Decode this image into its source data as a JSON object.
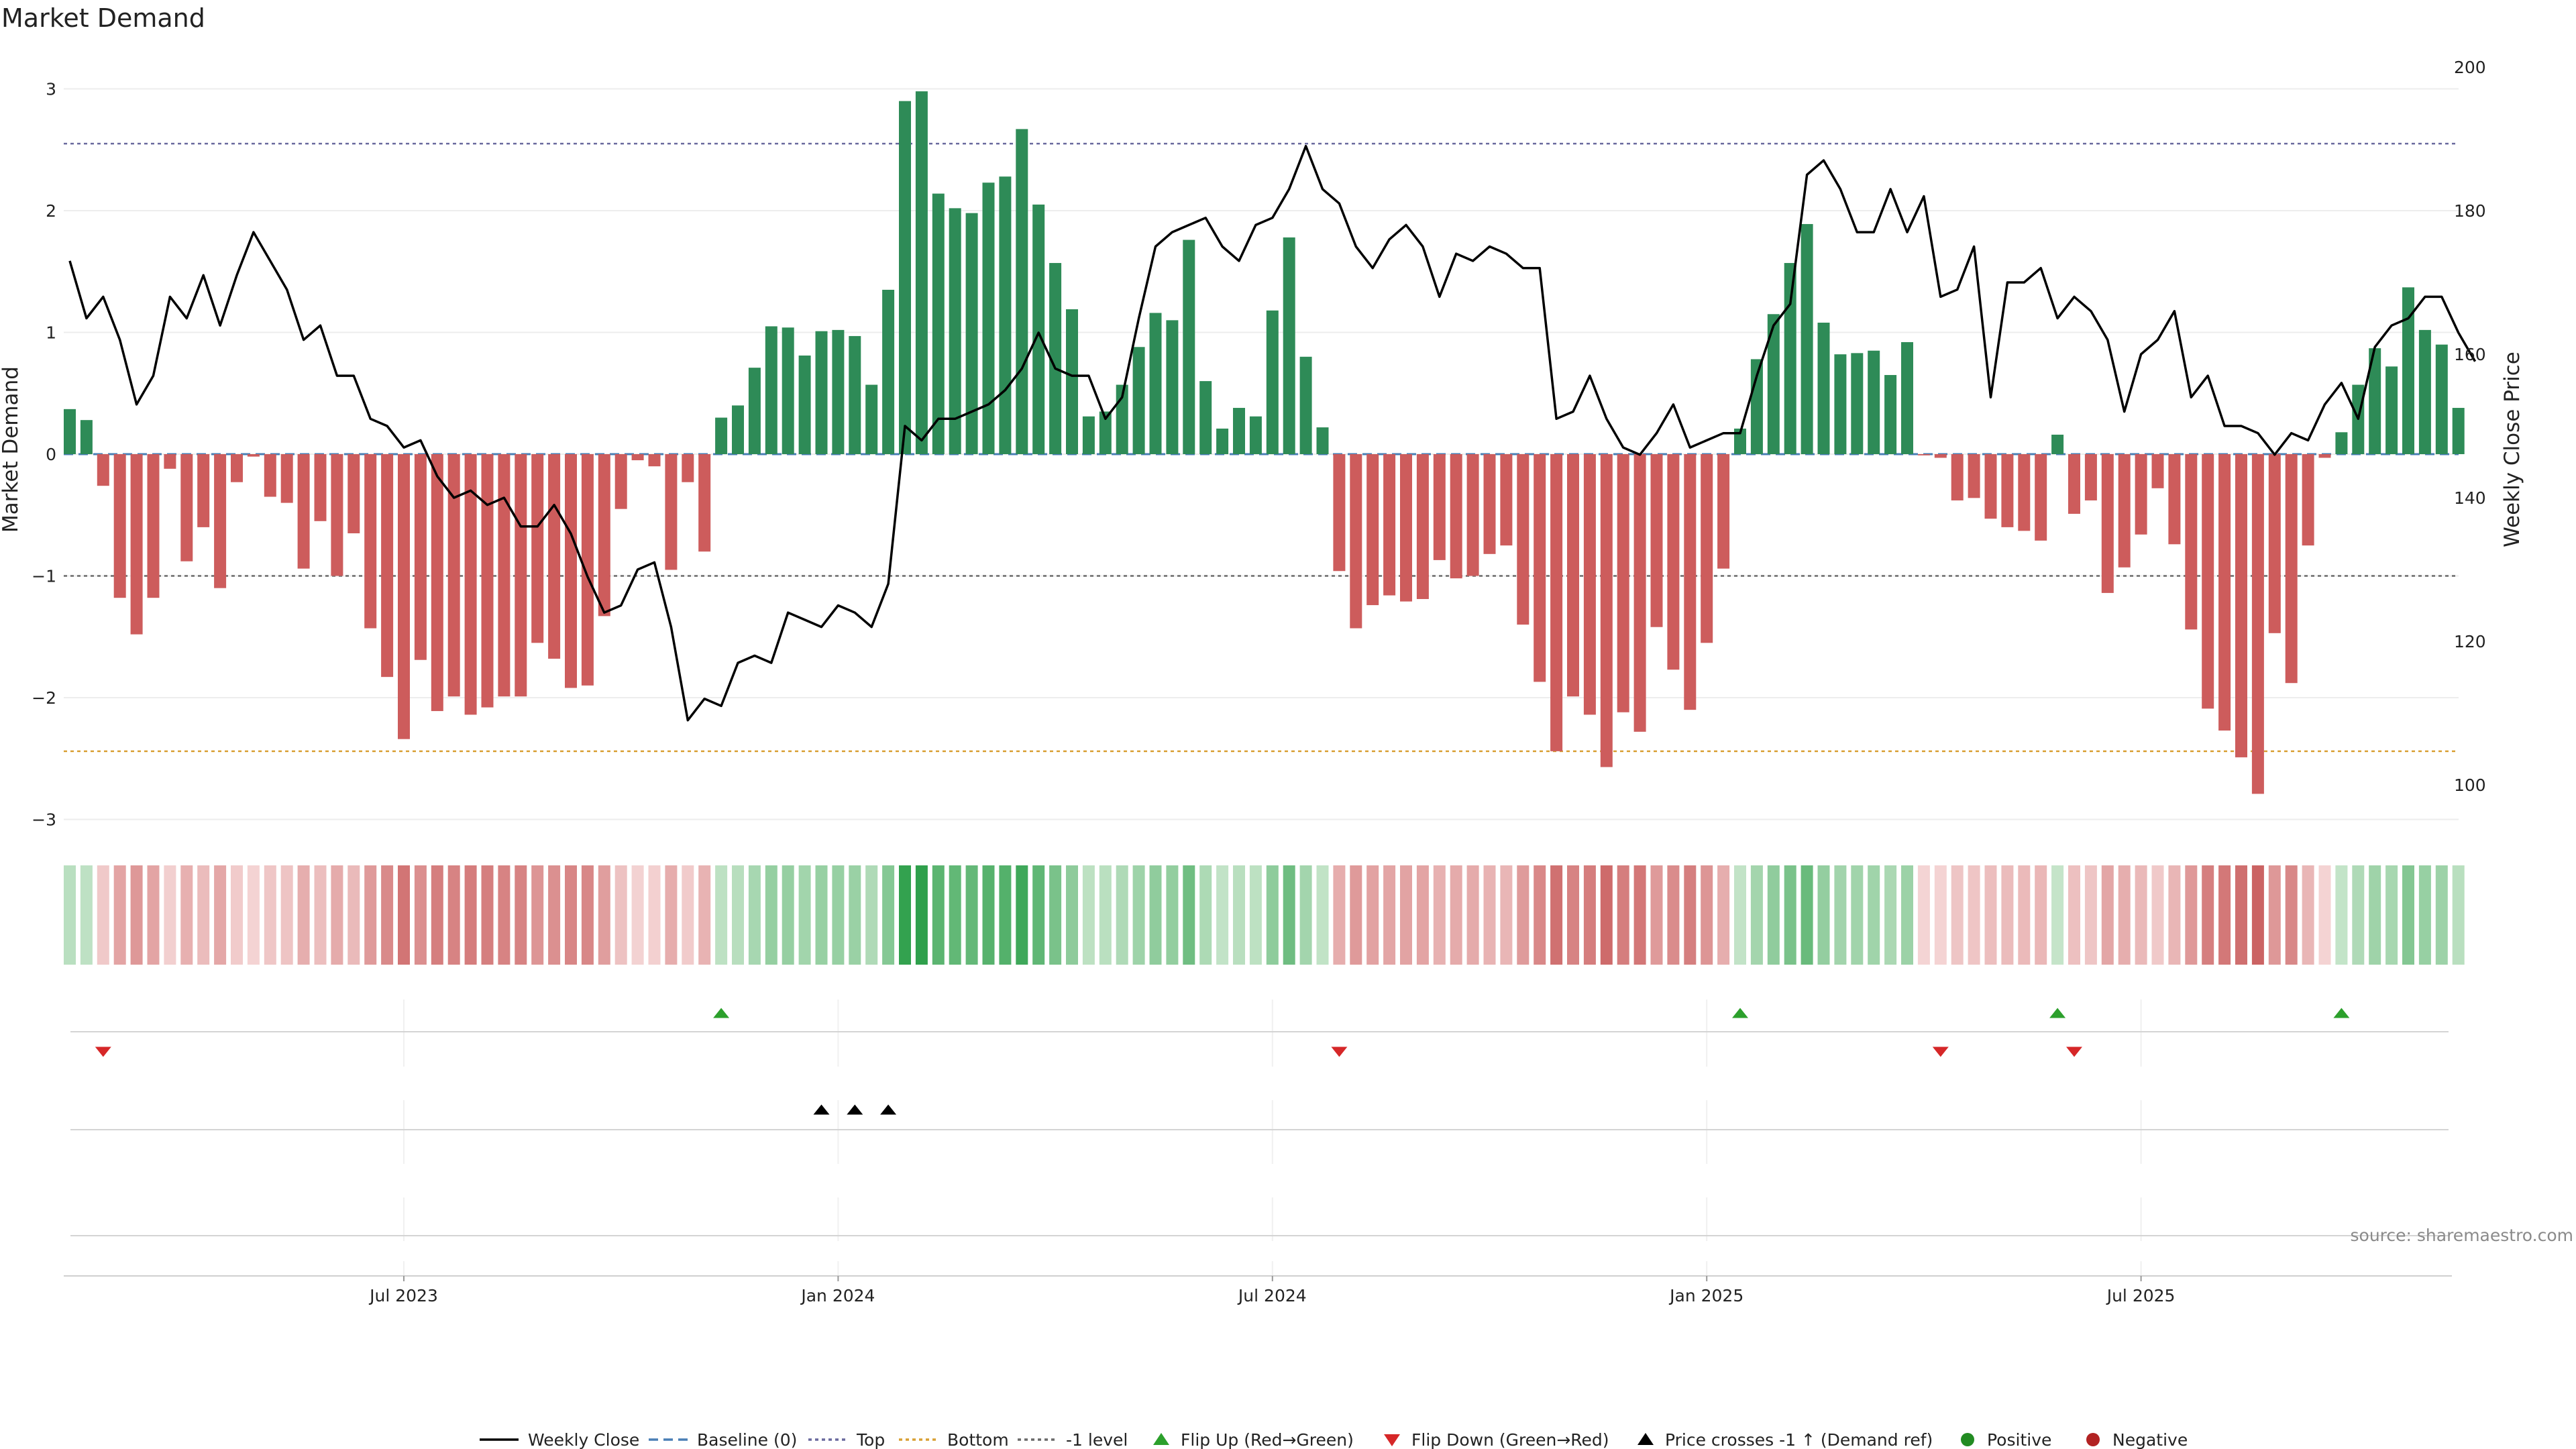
{
  "chart_data": {
    "type": "bar",
    "title": "Market Demand",
    "ylabel": "Market Demand",
    "y2label": "Weekly Close Price",
    "ylim": [
      -3,
      3
    ],
    "y2lim": [
      100,
      200
    ],
    "yticks": [
      3,
      2,
      1,
      0,
      -1,
      -2,
      -3
    ],
    "ytick_labels": [
      "3",
      "2",
      "1",
      "0",
      "−1",
      "−2",
      "−3"
    ],
    "y2ticks": [
      200,
      180,
      160,
      140,
      120,
      100
    ],
    "x_tick_labels": [
      {
        "label": "Jul 2023",
        "week": 20
      },
      {
        "label": "Jan 2024",
        "week": 46
      },
      {
        "label": "Jul 2024",
        "week": 72
      },
      {
        "label": "Jan 2025",
        "week": 98
      },
      {
        "label": "Jul 2025",
        "week": 124
      }
    ],
    "reference_lines": {
      "top": 2.55,
      "bottom": -2.44,
      "minus_one": -1.0,
      "baseline": 0
    },
    "demand": [
      0.37,
      0.28,
      -0.26,
      -1.18,
      -1.48,
      -1.18,
      -0.12,
      -0.88,
      -0.6,
      -1.1,
      -0.23,
      -0.02,
      -0.35,
      -0.4,
      -0.94,
      -0.55,
      -1.0,
      -0.65,
      -1.43,
      -1.83,
      -2.34,
      -1.69,
      -2.11,
      -1.99,
      -2.14,
      -2.08,
      -1.99,
      -1.99,
      -1.55,
      -1.68,
      -1.92,
      -1.9,
      -1.33,
      -0.45,
      -0.05,
      -0.1,
      -0.95,
      -0.23,
      -0.8,
      0.3,
      0.4,
      0.71,
      1.05,
      1.04,
      0.81,
      1.01,
      1.02,
      0.97,
      0.57,
      1.35,
      2.9,
      2.98,
      2.14,
      2.02,
      1.98,
      2.23,
      2.28,
      2.67,
      2.05,
      1.57,
      1.19,
      0.31,
      0.35,
      0.57,
      0.88,
      1.16,
      1.1,
      1.76,
      0.6,
      0.21,
      0.38,
      0.31,
      1.18,
      1.78,
      0.8,
      0.22,
      -0.96,
      -1.43,
      -1.24,
      -1.16,
      -1.21,
      -1.19,
      -0.87,
      -1.02,
      -1.0,
      -0.82,
      -0.75,
      -1.4,
      -1.87,
      -2.44,
      -1.99,
      -2.14,
      -2.57,
      -2.12,
      -2.28,
      -1.42,
      -1.77,
      -2.1,
      -1.55,
      -0.94,
      0.21,
      0.78,
      1.15,
      1.57,
      1.89,
      1.08,
      0.82,
      0.83,
      0.85,
      0.65,
      0.92,
      -0.01,
      -0.03,
      -0.38,
      -0.36,
      -0.53,
      -0.6,
      -0.63,
      -0.71,
      0.16,
      -0.49,
      -0.38,
      -1.14,
      -0.93,
      -0.66,
      -0.28,
      -0.74,
      -1.44,
      -2.09,
      -2.27,
      -2.49,
      -2.79,
      -1.47,
      -1.88,
      -0.75,
      -0.03,
      0.18,
      0.57,
      0.87,
      0.72,
      1.37,
      1.02,
      0.9,
      0.38
    ],
    "weekly_close": [
      173,
      165,
      168,
      162,
      153,
      157,
      168,
      165,
      171,
      164,
      171,
      177,
      173,
      169,
      162,
      164,
      157,
      157,
      151,
      150,
      147,
      148,
      143,
      140,
      141,
      139,
      140,
      136,
      136,
      139,
      135,
      129,
      124,
      125,
      130,
      131,
      122,
      109,
      112,
      111,
      117,
      118,
      117,
      124,
      123,
      122,
      125,
      124,
      122,
      128,
      150,
      148,
      151,
      151,
      152,
      153,
      155,
      158,
      163,
      158,
      157,
      157,
      151,
      154,
      165,
      175,
      177,
      178,
      179,
      175,
      173,
      178,
      179,
      183,
      189,
      183,
      181,
      175,
      172,
      176,
      178,
      175,
      168,
      174,
      173,
      175,
      174,
      172,
      172,
      151,
      152,
      157,
      151,
      147,
      146,
      149,
      153,
      147,
      148,
      149,
      149,
      157,
      164,
      167,
      185,
      187,
      183,
      177,
      177,
      183,
      177,
      182,
      168,
      169,
      175,
      154,
      170,
      170,
      172,
      165,
      168,
      166,
      162,
      152,
      160,
      162,
      166,
      154,
      157,
      150,
      150,
      149,
      146,
      149,
      148,
      153,
      156,
      151,
      161,
      164,
      165,
      168,
      168,
      163,
      159
    ],
    "flip_up_weeks": [
      39,
      100,
      119,
      136
    ],
    "flip_down_weeks": [
      2,
      76,
      112,
      120
    ],
    "price_cross_weeks": [
      45,
      47,
      49
    ],
    "legend": [
      "Weekly Close",
      "Baseline (0)",
      "Top",
      "Bottom",
      "-1 level",
      "Flip Up (Red→Green)",
      "Flip Down (Green→Red)",
      "Price crosses -1 ↑ (Demand ref)",
      "Positive",
      "Negative"
    ],
    "source": "source: sharemaestro.com"
  },
  "colors": {
    "positive": "#2e8b57",
    "negative": "#cd5c5c",
    "close": "#000000",
    "top": "#6a6a9e",
    "bottom": "#d9a035",
    "minus_one": "#6a6a6a",
    "baseline": "#4a7fb5",
    "flip_up": "#2ca02c",
    "flip_down": "#d62728",
    "positive_dot": "#228b22",
    "negative_dot": "#b22222"
  }
}
